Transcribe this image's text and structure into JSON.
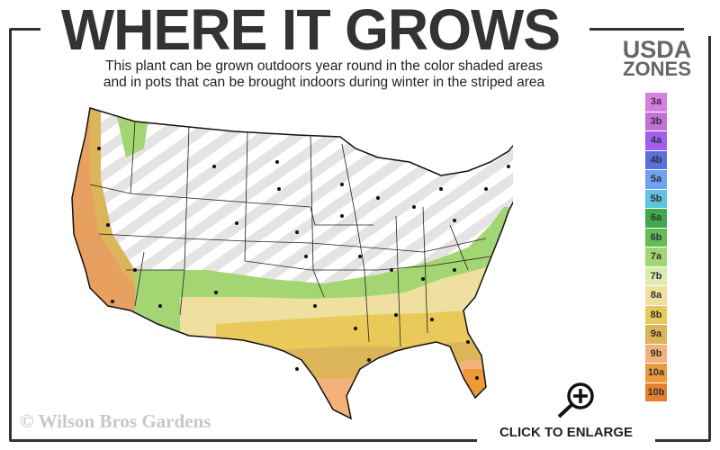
{
  "header": {
    "title": "WHERE IT GROWS",
    "subtitle_line1": "This plant can be grown outdoors year round in the color shaded areas",
    "subtitle_line2": "and in pots that can be brought indoors during winter in the striped area"
  },
  "legend": {
    "title_line1": "USDA",
    "title_line2": "ZONES",
    "zones": [
      {
        "label": "3a",
        "color": "#d77fe0"
      },
      {
        "label": "3b",
        "color": "#c470d6"
      },
      {
        "label": "4a",
        "color": "#a15ff2"
      },
      {
        "label": "4b",
        "color": "#5a6fe0"
      },
      {
        "label": "5a",
        "color": "#6fa0f2"
      },
      {
        "label": "5b",
        "color": "#5ec4e0"
      },
      {
        "label": "6a",
        "color": "#3ea84a"
      },
      {
        "label": "6b",
        "color": "#66bb55"
      },
      {
        "label": "7a",
        "color": "#a3d672"
      },
      {
        "label": "7b",
        "color": "#dcebb0"
      },
      {
        "label": "8a",
        "color": "#efe0a0"
      },
      {
        "label": "8b",
        "color": "#e8c95a"
      },
      {
        "label": "9a",
        "color": "#dcb45a"
      },
      {
        "label": "9b",
        "color": "#f2b27a"
      },
      {
        "label": "10a",
        "color": "#ee9a3c"
      },
      {
        "label": "10b",
        "color": "#e5802e"
      }
    ]
  },
  "footer": {
    "copyright": "© Wilson Bros Gardens",
    "enlarge_label": "CLICK TO ENLARGE",
    "enlarge_icon": "zoom-in-icon"
  }
}
